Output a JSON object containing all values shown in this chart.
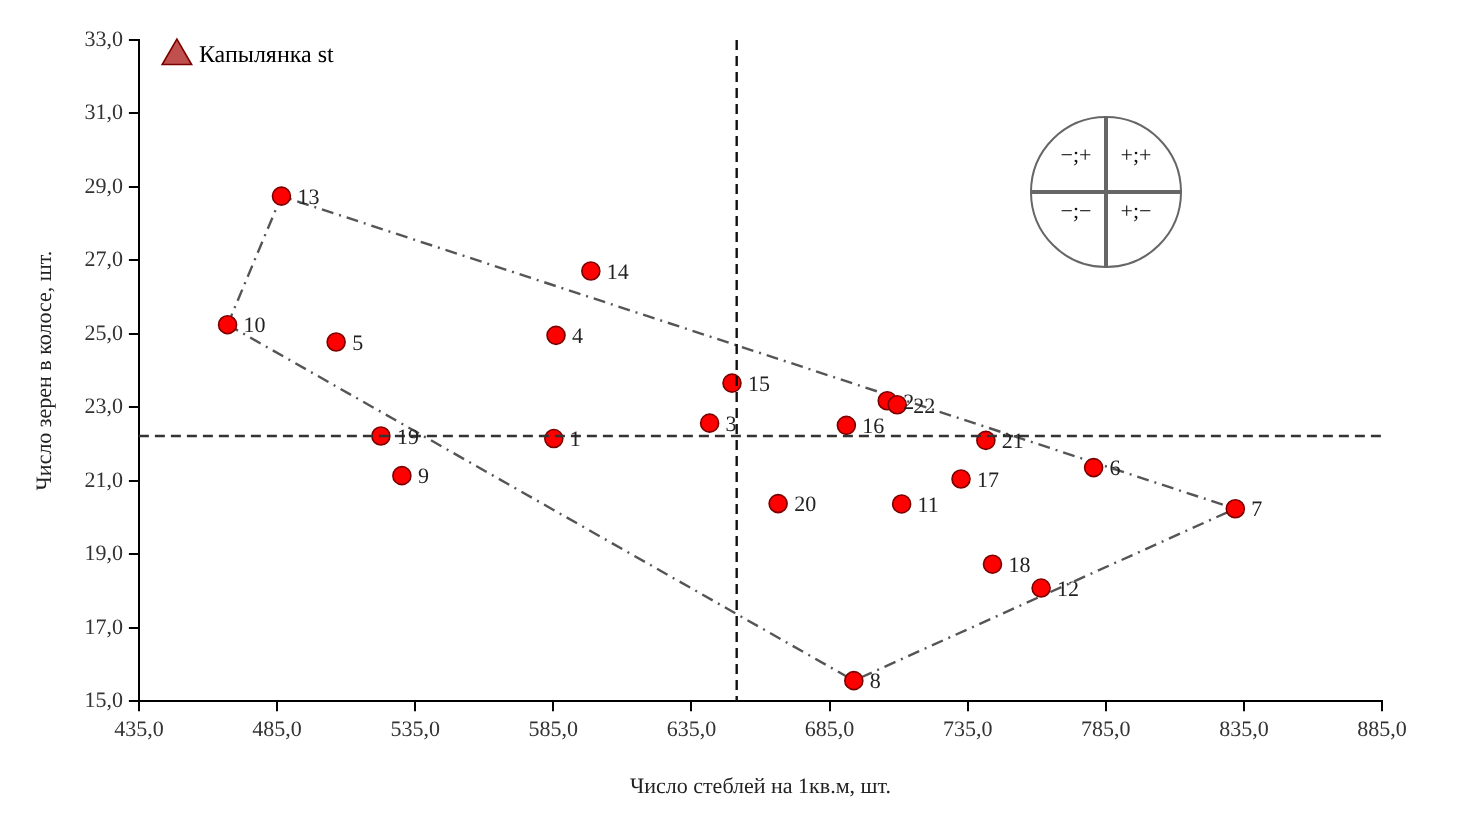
{
  "chart_data": {
    "type": "scatter",
    "xlabel": "Число стеблей на 1кв.м, шт.",
    "ylabel": "Число зерен в колосе, шт.",
    "xlim": [
      435,
      885
    ],
    "ylim": [
      15,
      33
    ],
    "xticks": [
      {
        "value": 435,
        "label": "435,0"
      },
      {
        "value": 485,
        "label": "485,0"
      },
      {
        "value": 535,
        "label": "535,0"
      },
      {
        "value": 585,
        "label": "585,0"
      },
      {
        "value": 635,
        "label": "635,0"
      },
      {
        "value": 685,
        "label": "685,0"
      },
      {
        "value": 735,
        "label": "735,0"
      },
      {
        "value": 785,
        "label": "785,0"
      },
      {
        "value": 835,
        "label": "835,0"
      },
      {
        "value": 885,
        "label": "885,0"
      }
    ],
    "yticks": [
      {
        "value": 15,
        "label": "15,0"
      },
      {
        "value": 17,
        "label": "17,0"
      },
      {
        "value": 19,
        "label": "19,0"
      },
      {
        "value": 21,
        "label": "21,0"
      },
      {
        "value": 23,
        "label": "23,0"
      },
      {
        "value": 25,
        "label": "25,0"
      },
      {
        "value": 27,
        "label": "27,0"
      },
      {
        "value": 29,
        "label": "29,0"
      },
      {
        "value": 31,
        "label": "31,0"
      },
      {
        "value": 33,
        "label": "33,0"
      }
    ],
    "grid": false,
    "legend": "top left",
    "series": [
      {
        "color": "#ff0000",
        "marker": "circle",
        "x": [
          585.2,
          705.9,
          641.6,
          586.0,
          506.4,
          780.6,
          831.9,
          693.8,
          530.2,
          467.1,
          711.1,
          761.6,
          486.6,
          598.6,
          649.7,
          691.1,
          732.6,
          744.0,
          522.6,
          666.4,
          741.6,
          709.5
        ],
        "values": [
          22.15,
          23.18,
          22.57,
          24.96,
          24.78,
          21.36,
          20.24,
          15.56,
          21.14,
          25.25,
          20.37,
          18.08,
          28.75,
          26.71,
          23.66,
          22.51,
          21.05,
          18.73,
          22.22,
          20.38,
          22.1,
          23.07
        ]
      },
      {
        "type": "line",
        "color": "#555555",
        "marker": "none",
        "line_style": "dashed",
        "x": [
          467.1,
          486.6,
          831.9
        ],
        "values": [
          25.25,
          28.75,
          20.24
        ]
      },
      {
        "type": "line",
        "color": "#555555",
        "marker": "none",
        "line_style": "dashed",
        "x": [
          467.1,
          693.8,
          831.9
        ],
        "values": [
          25.25,
          15.56,
          20.24
        ]
      },
      {
        "type": "scatter",
        "name": "Капылянка st",
        "color": "#c0504d",
        "marker": "triangle"
      }
    ],
    "ref_lines": [
      {
        "axis": "y",
        "value": 22.22,
        "color": "#333333",
        "line_style": "dashed"
      },
      {
        "axis": "x",
        "value": 651.4,
        "color": "#111111",
        "line_style": "dashed"
      }
    ],
    "annotations": [
      "−;+",
      "+;+",
      "−;−",
      "+;−",
      {
        "text": "1",
        "x": 585.2,
        "y": 22.15
      },
      {
        "text": "2",
        "x": 705.9,
        "y": 23.18
      },
      {
        "text": "3",
        "x": 641.6,
        "y": 22.57
      },
      {
        "text": "4",
        "x": 586.0,
        "y": 24.96
      },
      {
        "text": "5",
        "x": 506.4,
        "y": 24.78
      },
      {
        "text": "6",
        "x": 780.6,
        "y": 21.36
      },
      {
        "text": "7",
        "x": 831.9,
        "y": 20.24
      },
      {
        "text": "8",
        "x": 693.8,
        "y": 15.56
      },
      {
        "text": "9",
        "x": 530.2,
        "y": 21.14
      },
      {
        "text": "10",
        "x": 467.1,
        "y": 25.25
      },
      {
        "text": "11",
        "x": 711.1,
        "y": 20.37
      },
      {
        "text": "12",
        "x": 761.6,
        "y": 18.08
      },
      {
        "text": "13",
        "x": 486.6,
        "y": 28.75
      },
      {
        "text": "14",
        "x": 598.6,
        "y": 26.71
      },
      {
        "text": "15",
        "x": 649.7,
        "y": 23.66
      },
      {
        "text": "16",
        "x": 691.1,
        "y": 22.51
      },
      {
        "text": "17",
        "x": 732.6,
        "y": 21.05
      },
      {
        "text": "18",
        "x": 744.0,
        "y": 18.73
      },
      {
        "text": "19",
        "x": 522.6,
        "y": 22.22
      },
      {
        "text": "20",
        "x": 666.4,
        "y": 20.38
      },
      {
        "text": "21",
        "x": 741.6,
        "y": 22.1
      },
      {
        "text": "22",
        "x": 709.5,
        "y": 23.07
      }
    ]
  }
}
